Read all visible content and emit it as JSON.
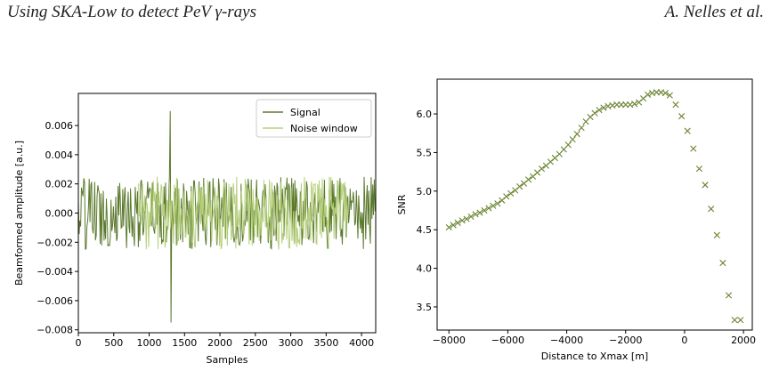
{
  "header": {
    "title_prefix": "Using SKA-Low to detect PeV ",
    "title_symbol": "γ",
    "title_suffix": "-rays",
    "authors": "A. Nelles et al."
  },
  "chart_data": [
    {
      "type": "line",
      "xlabel": "Samples",
      "ylabel": "Beamformed amplitude [a.u.]",
      "xlim": [
        0,
        4200
      ],
      "ylim": [
        -0.0082,
        0.0082
      ],
      "xticks": [
        "0",
        "500",
        "1000",
        "1500",
        "2000",
        "2500",
        "3000",
        "3500",
        "4000"
      ],
      "xtick_values": [
        0,
        500,
        1000,
        1500,
        2000,
        2500,
        3000,
        3500,
        4000
      ],
      "yticks": [
        "−0.008",
        "−0.006",
        "−0.004",
        "−0.002",
        "0.000",
        "0.002",
        "0.004",
        "0.006"
      ],
      "ytick_values": [
        -0.008,
        -0.006,
        -0.004,
        -0.002,
        0,
        0.002,
        0.004,
        0.006
      ],
      "legend": {
        "position": "top-right",
        "entries": [
          "Signal",
          "Noise window"
        ]
      },
      "series": [
        {
          "name": "Signal",
          "color": "#5c7a2e",
          "x_range": [
            0,
            4200
          ],
          "amplitude": 0.0025,
          "spike": {
            "x": 1300,
            "max": 0.007,
            "min": -0.0075
          }
        },
        {
          "name": "Noise window",
          "color": "#b6d07c",
          "x_range": [
            850,
            3800
          ],
          "amplitude": 0.0025
        }
      ]
    },
    {
      "type": "scatter",
      "marker": "x",
      "color": "#6a8431",
      "xlabel": "Distance to Xmax [m]",
      "ylabel": "SNR",
      "xlim": [
        -8400,
        2300
      ],
      "ylim": [
        3.2,
        6.45
      ],
      "xticks": [
        "−8000",
        "−6000",
        "−4000",
        "−2000",
        "0",
        "2000"
      ],
      "xtick_values": [
        -8000,
        -6000,
        -4000,
        -2000,
        0,
        2000
      ],
      "yticks": [
        "3.5",
        "4.0",
        "4.5",
        "5.0",
        "5.5",
        "6.0"
      ],
      "ytick_values": [
        3.5,
        4.0,
        4.5,
        5.0,
        5.5,
        6.0
      ],
      "x": [
        -8000,
        -7850,
        -7700,
        -7550,
        -7400,
        -7250,
        -7100,
        -6950,
        -6800,
        -6650,
        -6500,
        -6350,
        -6200,
        -6050,
        -5900,
        -5750,
        -5600,
        -5450,
        -5300,
        -5150,
        -5000,
        -4850,
        -4700,
        -4550,
        -4400,
        -4250,
        -4100,
        -3950,
        -3800,
        -3650,
        -3500,
        -3350,
        -3200,
        -3050,
        -2900,
        -2750,
        -2600,
        -2450,
        -2300,
        -2150,
        -2000,
        -1850,
        -1700,
        -1550,
        -1400,
        -1250,
        -1100,
        -950,
        -800,
        -650,
        -500,
        -300,
        -100,
        100,
        300,
        500,
        700,
        900,
        1100,
        1300,
        1500,
        1700,
        1900
      ],
      "y": [
        4.53,
        4.56,
        4.59,
        4.62,
        4.64,
        4.67,
        4.7,
        4.72,
        4.75,
        4.78,
        4.81,
        4.84,
        4.88,
        4.93,
        4.97,
        5.01,
        5.06,
        5.1,
        5.15,
        5.19,
        5.24,
        5.29,
        5.33,
        5.38,
        5.43,
        5.48,
        5.54,
        5.6,
        5.67,
        5.74,
        5.82,
        5.9,
        5.96,
        6.01,
        6.05,
        6.08,
        6.1,
        6.11,
        6.12,
        6.12,
        6.12,
        6.12,
        6.13,
        6.15,
        6.2,
        6.25,
        6.27,
        6.28,
        6.28,
        6.27,
        6.24,
        6.12,
        5.97,
        5.78,
        5.55,
        5.29,
        5.08,
        4.77,
        4.43,
        4.07,
        3.65,
        3.33,
        3.33
      ]
    }
  ]
}
